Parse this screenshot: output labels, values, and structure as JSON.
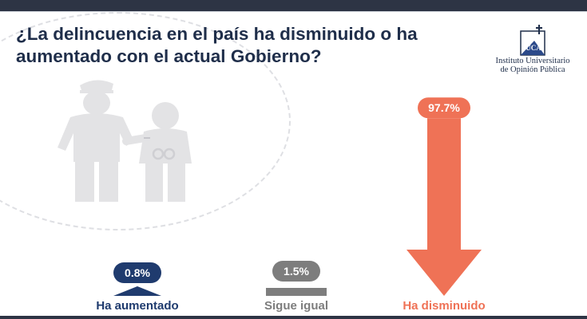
{
  "slide": {
    "title": "¿La delincuencia en el país ha disminuido o ha aumentado con el actual Gobierno?",
    "logo_text": [
      "Instituto Universitario",
      "de Opinión Pública"
    ],
    "logo_mark_text": "UCA",
    "illustration_icon": "police-officer-with-handcuffed-person-icon"
  },
  "colors": {
    "title": "#1f2e4a",
    "aumentado": "#1f3b6e",
    "igual": "#7d7d7d",
    "disminuido": "#ef7256"
  },
  "chart_data": {
    "type": "bar",
    "title": "¿La delincuencia en el país ha disminuido o ha aumentado con el actual Gobierno?",
    "categories": [
      "Ha aumentado",
      "Sigue igual",
      "Ha disminuido"
    ],
    "values": [
      0.8,
      1.5,
      97.7
    ],
    "value_labels": [
      "0.8%",
      "1.5%",
      "97.7%"
    ],
    "unit": "%",
    "ylim": [
      0,
      100
    ],
    "grid": false,
    "legend": "none"
  }
}
